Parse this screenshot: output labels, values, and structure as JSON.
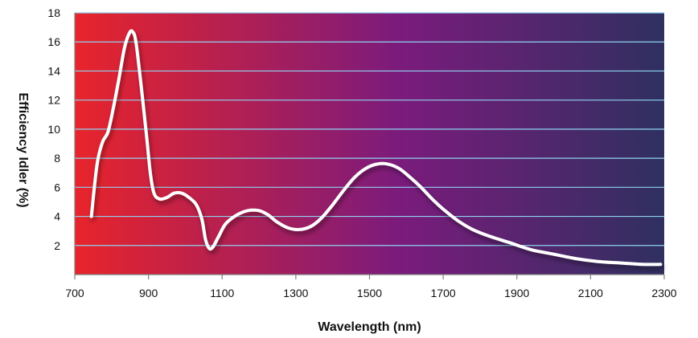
{
  "chart_data": {
    "type": "line",
    "xlabel": "Wavelength (nm)",
    "ylabel": "Efficiency Idler (%)",
    "xlim": [
      700,
      2300
    ],
    "ylim": [
      0,
      18
    ],
    "x_ticks": [
      700,
      900,
      1100,
      1300,
      1500,
      1700,
      1900,
      2100,
      2300
    ],
    "y_ticks": [
      2,
      4,
      6,
      8,
      10,
      12,
      14,
      16,
      18
    ],
    "grid": true,
    "background_gradient": [
      "#e8242b",
      "#7b1b7c",
      "#2f3060"
    ],
    "line_color": "#ffffff",
    "series": [
      {
        "x": [
          745,
          760,
          775,
          790,
          805,
          820,
          835,
          848,
          857,
          866,
          880,
          895,
          905,
          915,
          930,
          950,
          970,
          990,
          1010,
          1030,
          1045,
          1055,
          1065,
          1075,
          1090,
          1110,
          1140,
          1170,
          1200,
          1225,
          1250,
          1280,
          1310,
          1340,
          1370,
          1400,
          1430,
          1460,
          1490,
          1520,
          1550,
          1580,
          1610,
          1640,
          1670,
          1700,
          1740,
          1780,
          1830,
          1880,
          1940,
          2000,
          2060,
          2120,
          2180,
          2240,
          2290
        ],
        "y": [
          4.0,
          7.5,
          9.1,
          9.8,
          11.5,
          13.5,
          15.6,
          16.6,
          16.7,
          16.0,
          13.0,
          9.5,
          7.0,
          5.6,
          5.2,
          5.3,
          5.6,
          5.6,
          5.3,
          4.8,
          3.8,
          2.4,
          1.8,
          1.9,
          2.6,
          3.5,
          4.1,
          4.4,
          4.4,
          4.1,
          3.6,
          3.2,
          3.1,
          3.3,
          3.9,
          4.8,
          5.8,
          6.7,
          7.3,
          7.6,
          7.6,
          7.3,
          6.7,
          6.0,
          5.2,
          4.5,
          3.7,
          3.1,
          2.6,
          2.2,
          1.7,
          1.4,
          1.1,
          0.9,
          0.8,
          0.7,
          0.7
        ]
      }
    ]
  }
}
